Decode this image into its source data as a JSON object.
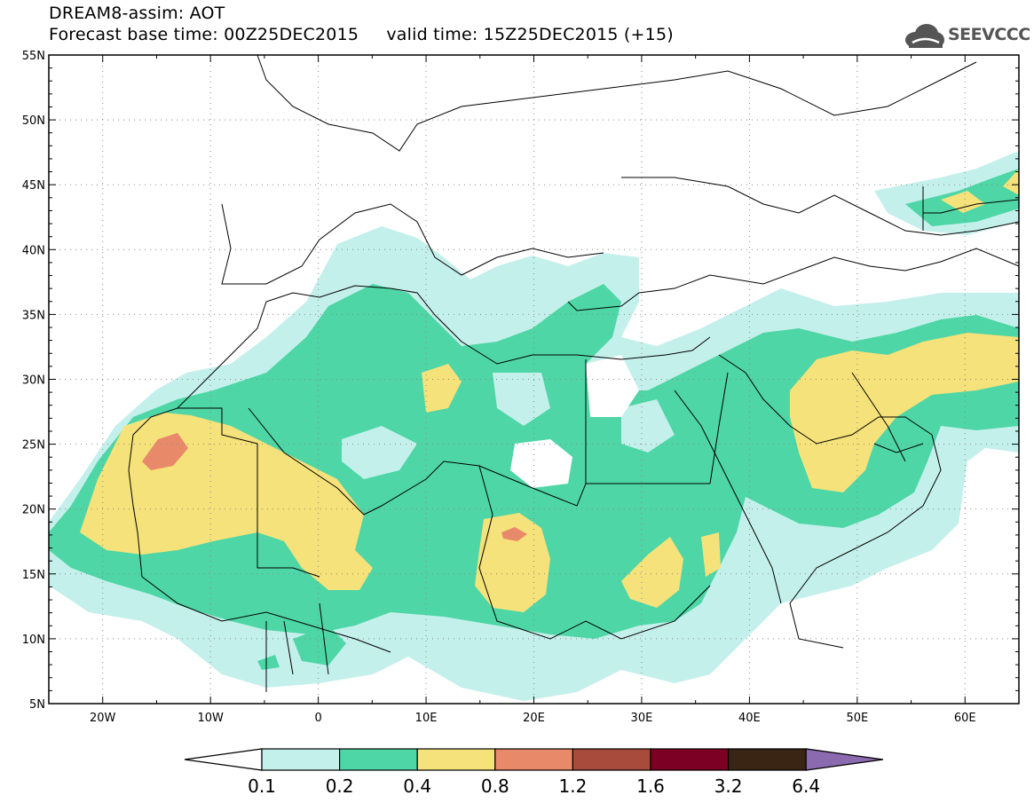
{
  "title": {
    "line1": "DREAM8-assim: AOT",
    "line2": "Forecast base time: 00Z25DEC2015     valid time: 15Z25DEC2015 (+15)"
  },
  "logo": {
    "text": "SEEVCCC",
    "icon": "cloud-icon"
  },
  "map": {
    "lon_range": [
      -25,
      65
    ],
    "lat_range": [
      5,
      55
    ],
    "lon_labels": [
      {
        "lon": -20,
        "text": "20W"
      },
      {
        "lon": -10,
        "text": "10W"
      },
      {
        "lon": 0,
        "text": "0"
      },
      {
        "lon": 10,
        "text": "10E"
      },
      {
        "lon": 20,
        "text": "20E"
      },
      {
        "lon": 30,
        "text": "30E"
      },
      {
        "lon": 40,
        "text": "40E"
      },
      {
        "lon": 50,
        "text": "50E"
      },
      {
        "lon": 60,
        "text": "60E"
      }
    ],
    "lat_labels": [
      {
        "lat": 55,
        "text": "55N"
      },
      {
        "lat": 50,
        "text": "50N"
      },
      {
        "lat": 45,
        "text": "45N"
      },
      {
        "lat": 40,
        "text": "40N"
      },
      {
        "lat": 35,
        "text": "35N"
      },
      {
        "lat": 30,
        "text": "30N"
      },
      {
        "lat": 25,
        "text": "25N"
      },
      {
        "lat": 20,
        "text": "20N"
      },
      {
        "lat": 15,
        "text": "15N"
      },
      {
        "lat": 10,
        "text": "10N"
      },
      {
        "lat": 5,
        "text": "5N"
      }
    ],
    "grid": "dotted"
  },
  "colorbar": {
    "colors": [
      "#ffffff",
      "#c4f0ec",
      "#4ed6a6",
      "#f6e27a",
      "#e88a6a",
      "#a84a3c",
      "#7c0024",
      "#3a2414",
      "#8c6ab0"
    ],
    "labels": [
      "0.1",
      "0.2",
      "0.4",
      "0.8",
      "1.2",
      "1.6",
      "3.2",
      "6.4"
    ]
  }
}
